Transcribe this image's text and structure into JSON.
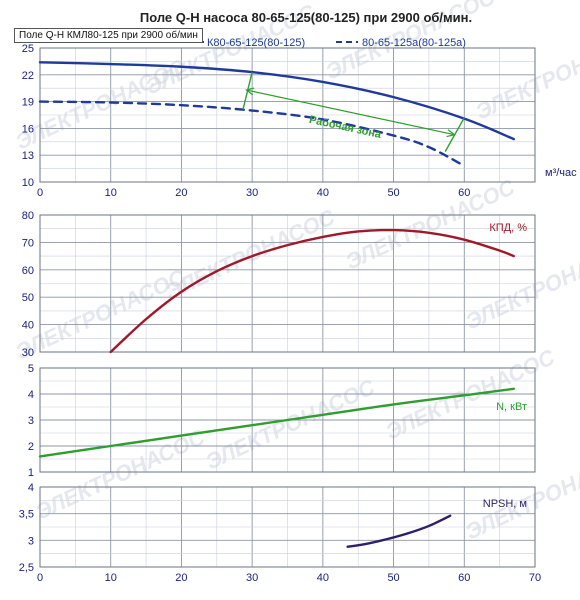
{
  "title": "Поле Q-H насоса 80-65-125(80-125) при 2900 об/мин.",
  "tooltip": "Поле Q-H КМЛ80-125 при 2900 об/мин",
  "watermark": "ЭЛЕКТРОНАСОС",
  "chart_data": [
    {
      "type": "line",
      "name": "qh",
      "xlim": [
        0,
        70
      ],
      "ylim": [
        10,
        25
      ],
      "yticks": [
        10,
        13,
        16,
        19,
        22,
        25
      ],
      "xticks": [
        0,
        10,
        20,
        30,
        40,
        50,
        60
      ],
      "xlabel": "м³/час",
      "ylabel": "",
      "series": [
        {
          "name": "К80-65-125(80-125)",
          "style": "solid",
          "color": "#1f3a9a",
          "x": [
            0,
            10,
            20,
            30,
            40,
            50,
            60,
            67
          ],
          "y": [
            23.4,
            23.2,
            22.9,
            22.3,
            21.2,
            19.5,
            17.1,
            14.8
          ]
        },
        {
          "name": "80-65-125а(80-125а)",
          "style": "dashed",
          "color": "#1f3a9a",
          "x": [
            0,
            10,
            20,
            30,
            40,
            50,
            55,
            60
          ],
          "y": [
            19.0,
            18.9,
            18.6,
            18.0,
            17.0,
            15.2,
            13.9,
            11.8
          ]
        }
      ],
      "annotations": {
        "zone_label": "Рабочая зона",
        "color": "#2e9e2e",
        "left_line": [
          [
            30,
            22.3
          ],
          [
            28.7,
            18.1
          ]
        ],
        "right_line": [
          [
            60,
            17.2
          ],
          [
            57.3,
            13.4
          ]
        ],
        "arrow": [
          [
            29.2,
            20.3
          ],
          [
            58.6,
            15.3
          ]
        ]
      }
    },
    {
      "type": "line",
      "name": "kpd",
      "xlim": [
        0,
        70
      ],
      "ylim": [
        30,
        80
      ],
      "yticks": [
        30,
        40,
        50,
        60,
        70,
        80
      ],
      "label": "КПД, %",
      "series": [
        {
          "name": "КПД",
          "color": "#a0182a",
          "x": [
            10,
            15,
            20,
            25,
            30,
            35,
            40,
            45,
            50,
            55,
            60,
            65,
            67
          ],
          "y": [
            30,
            42,
            52,
            59.5,
            65,
            69,
            72,
            74,
            74.5,
            73.5,
            71,
            67,
            65
          ]
        }
      ]
    },
    {
      "type": "line",
      "name": "power",
      "xlim": [
        0,
        70
      ],
      "ylim": [
        1,
        5
      ],
      "yticks": [
        1,
        2,
        3,
        4,
        5
      ],
      "label": "N, кВт",
      "series": [
        {
          "name": "N",
          "color": "#2e9e2e",
          "x": [
            0,
            10,
            20,
            30,
            40,
            50,
            60,
            67
          ],
          "y": [
            1.6,
            2.0,
            2.4,
            2.8,
            3.2,
            3.6,
            3.95,
            4.2
          ]
        }
      ]
    },
    {
      "type": "line",
      "name": "npsh",
      "xlim": [
        0,
        70
      ],
      "ylim": [
        2.5,
        4
      ],
      "yticks": [
        2.5,
        3,
        3.5,
        4
      ],
      "ytick_labels": [
        "2,5",
        "3",
        "3,5",
        "4"
      ],
      "xticks": [
        0,
        10,
        20,
        30,
        40,
        50,
        60,
        70
      ],
      "label": "NPSH, м",
      "series": [
        {
          "name": "NPSH",
          "color": "#2d1f6b",
          "x": [
            43.5,
            46,
            49,
            52,
            55,
            58
          ],
          "y": [
            2.88,
            2.93,
            3.02,
            3.13,
            3.27,
            3.46
          ]
        }
      ]
    }
  ]
}
